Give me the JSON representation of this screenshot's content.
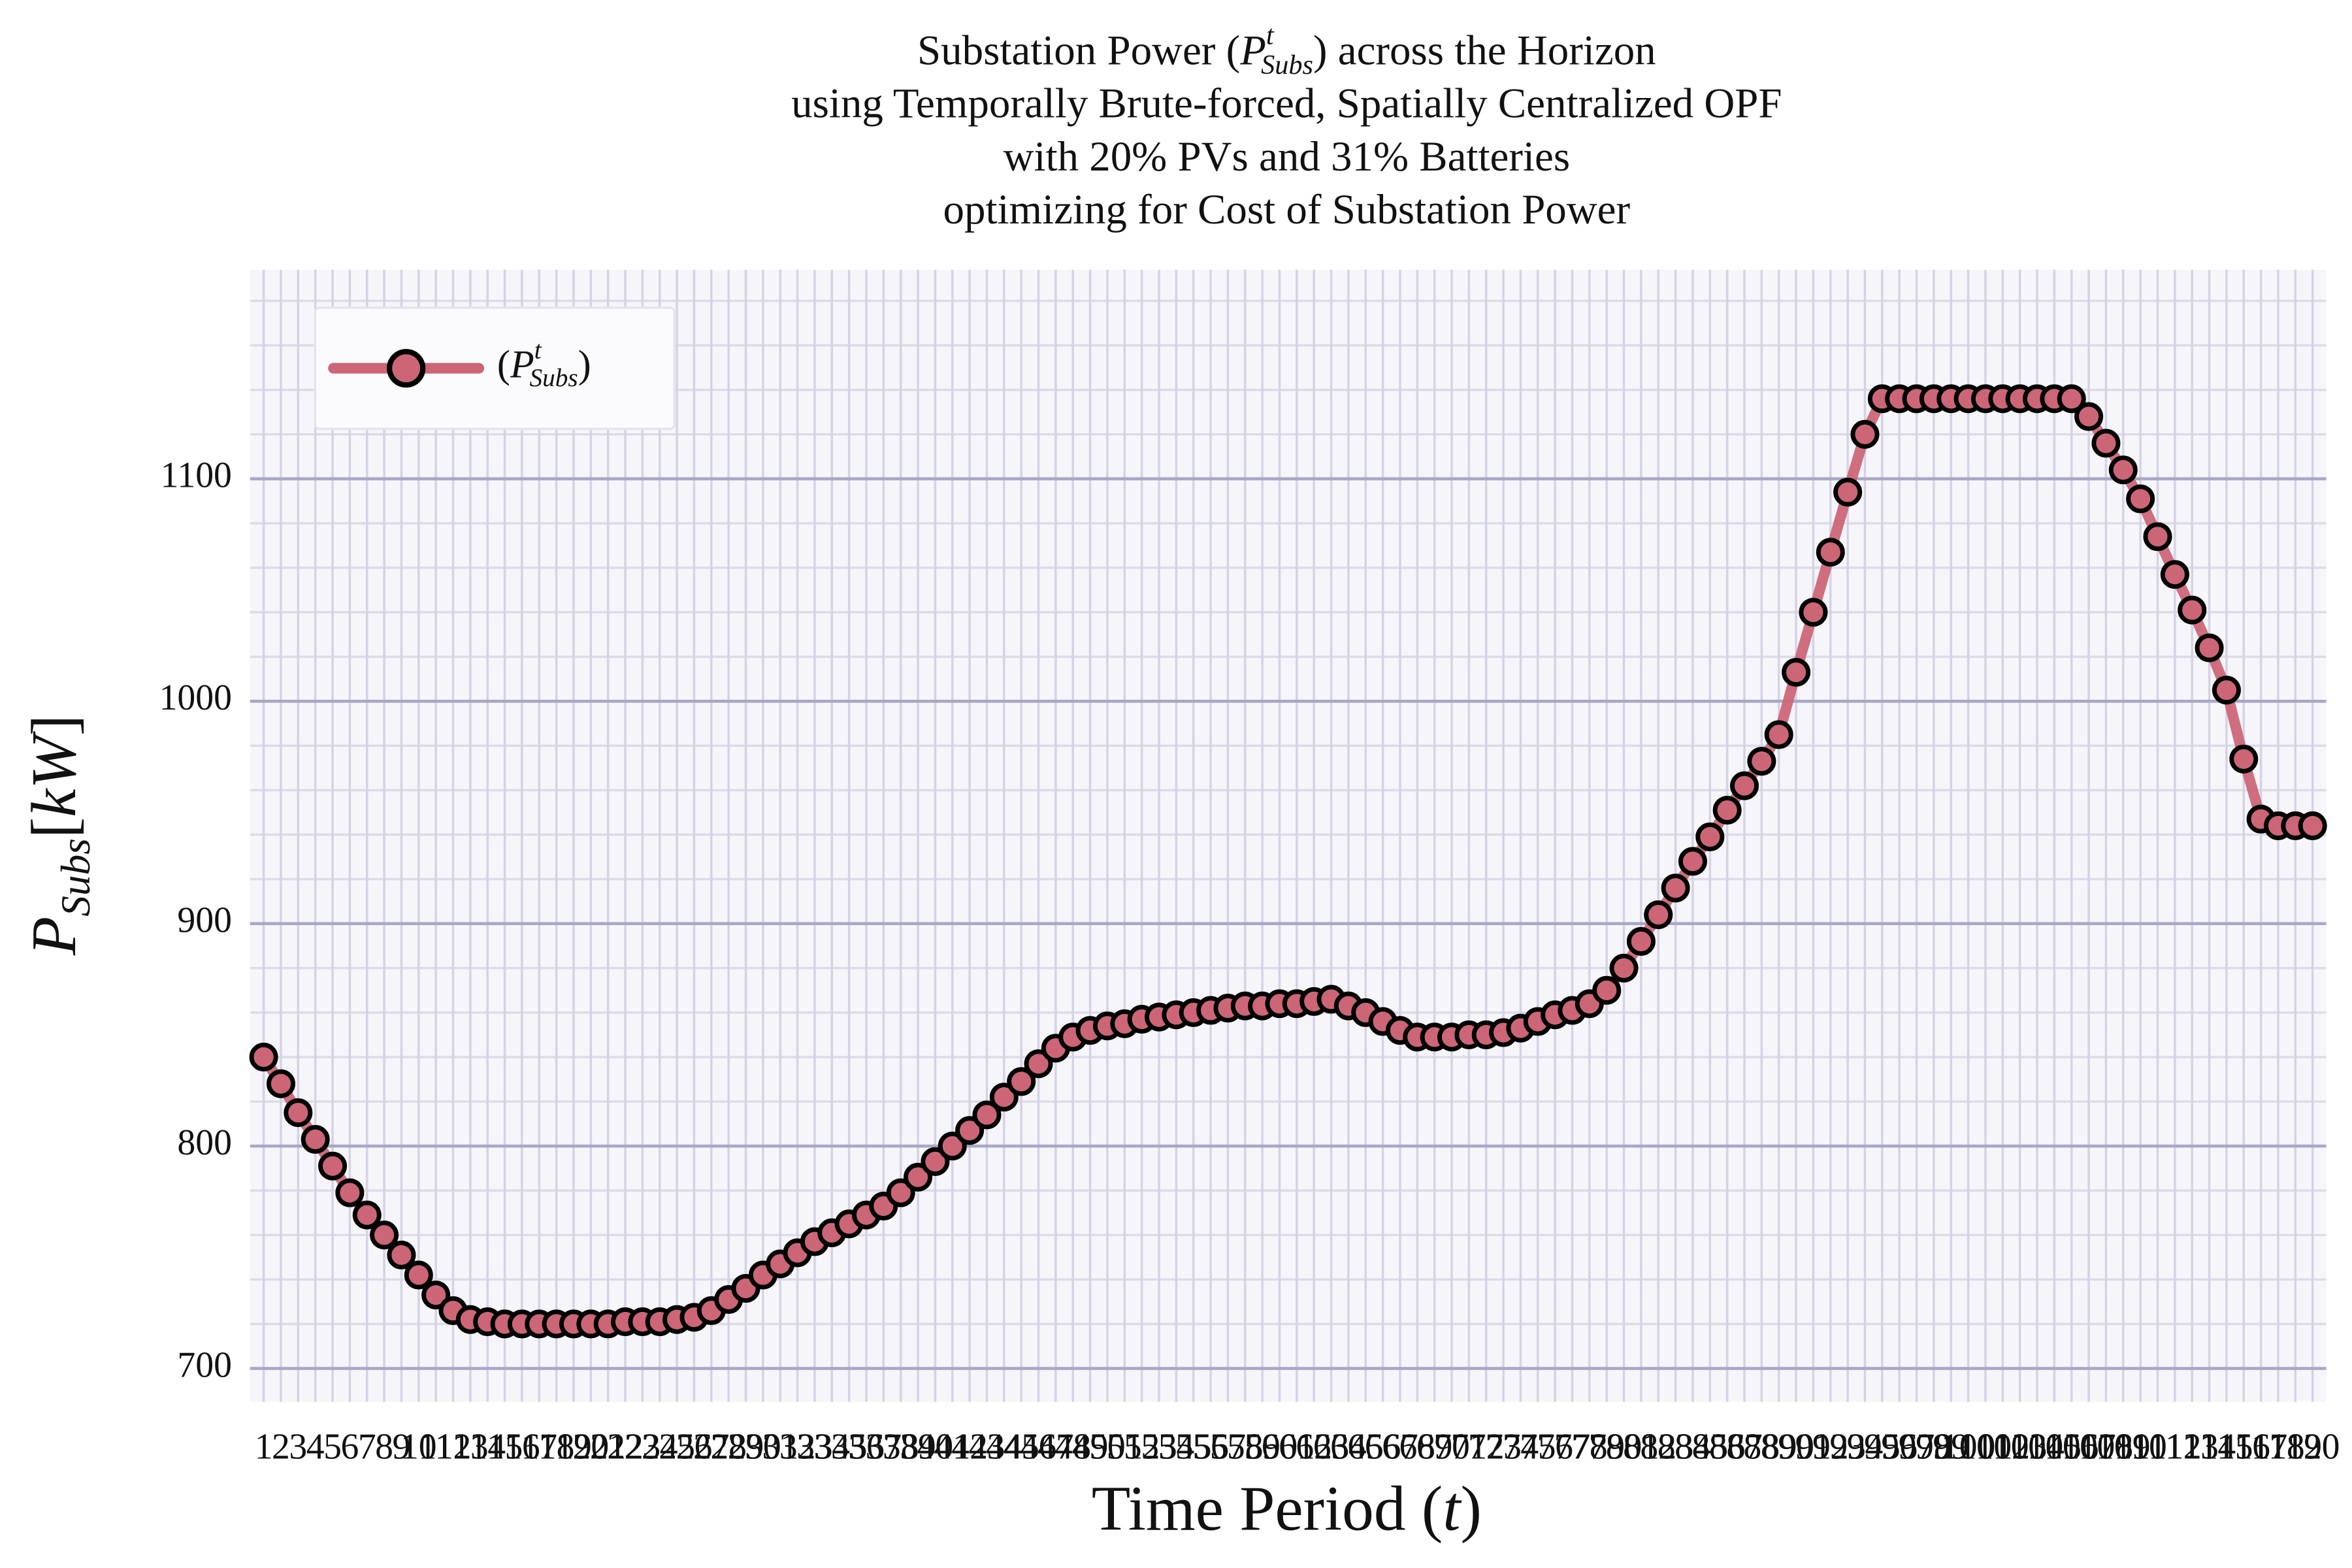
{
  "chart_data": {
    "type": "line",
    "title": [
      [
        "Substation Power (",
        "P",
        "t",
        "Subs",
        ") across the Horizon"
      ],
      "using Temporally Brute-forced, Spatially Centralized OPF",
      "with 20% PVs and 31% Batteries",
      "optimizing for Cost of Substation Power"
    ],
    "xlabel": [
      "Time Period (",
      "t",
      ")"
    ],
    "ylabel": [
      "P",
      "Subs",
      "[",
      "kW",
      "]"
    ],
    "categories": [
      "1",
      "2",
      "3",
      "4",
      "5",
      "6",
      "7",
      "8",
      "9",
      "10",
      "11",
      "12",
      "13",
      "14",
      "15",
      "16",
      "17",
      "18",
      "19",
      "20",
      "21",
      "22",
      "23",
      "24",
      "25",
      "26",
      "27",
      "28",
      "29",
      "30",
      "31",
      "32",
      "33",
      "34",
      "35",
      "36",
      "37",
      "38",
      "39",
      "40",
      "41",
      "42",
      "43",
      "44",
      "45",
      "46",
      "47",
      "48",
      "49",
      "50",
      "51",
      "52",
      "53",
      "54",
      "55",
      "56",
      "57",
      "58",
      "59",
      "60",
      "61",
      "62",
      "63",
      "64",
      "65",
      "66",
      "67",
      "68",
      "69",
      "70",
      "71",
      "72",
      "73",
      "74",
      "75",
      "76",
      "77",
      "78",
      "79",
      "80",
      "81",
      "82",
      "83",
      "84",
      "85",
      "86",
      "87",
      "88",
      "89",
      "90",
      "91",
      "92",
      "93",
      "94",
      "95",
      "96",
      "97",
      "98",
      "99",
      "100",
      "101",
      "102",
      "103",
      "104",
      "105",
      "106",
      "107",
      "108",
      "109",
      "110",
      "111",
      "112",
      "113",
      "114",
      "115",
      "116",
      "117",
      "118",
      "119",
      "120"
    ],
    "series": [
      {
        "name": [
          "(",
          "P",
          "t",
          "Subs",
          ")"
        ],
        "color": "#cc6677",
        "marker_edge": "#000000",
        "values": [
          840,
          828,
          815,
          803,
          791,
          779,
          769,
          760,
          751,
          742,
          733,
          726,
          722,
          721,
          720,
          720,
          720,
          720,
          720,
          720,
          720,
          721,
          721,
          721,
          722,
          723,
          726,
          731,
          736,
          742,
          747,
          752,
          757,
          761,
          765,
          769,
          773,
          779,
          786,
          793,
          800,
          807,
          814,
          822,
          829,
          837,
          844,
          849,
          852,
          854,
          855,
          857,
          858,
          859,
          860,
          861,
          862,
          863,
          863,
          864,
          864,
          865,
          866,
          863,
          860,
          856,
          852,
          849,
          849,
          849,
          850,
          850,
          851,
          853,
          856,
          859,
          861,
          864,
          870,
          880,
          892,
          904,
          916,
          928,
          939,
          951,
          962,
          973,
          985,
          1013,
          1040,
          1067,
          1094,
          1120,
          1136,
          1136,
          1136,
          1136,
          1136,
          1136,
          1136,
          1136,
          1136,
          1136,
          1136,
          1136,
          1128,
          1116,
          1104,
          1091,
          1074,
          1057,
          1041,
          1024,
          1005,
          974,
          947,
          944,
          944,
          944
        ]
      }
    ],
    "ylim": [
      685,
      1194
    ],
    "yticks": [
      700,
      800,
      900,
      1000,
      1100
    ],
    "grid": true,
    "legend": "upper left"
  }
}
